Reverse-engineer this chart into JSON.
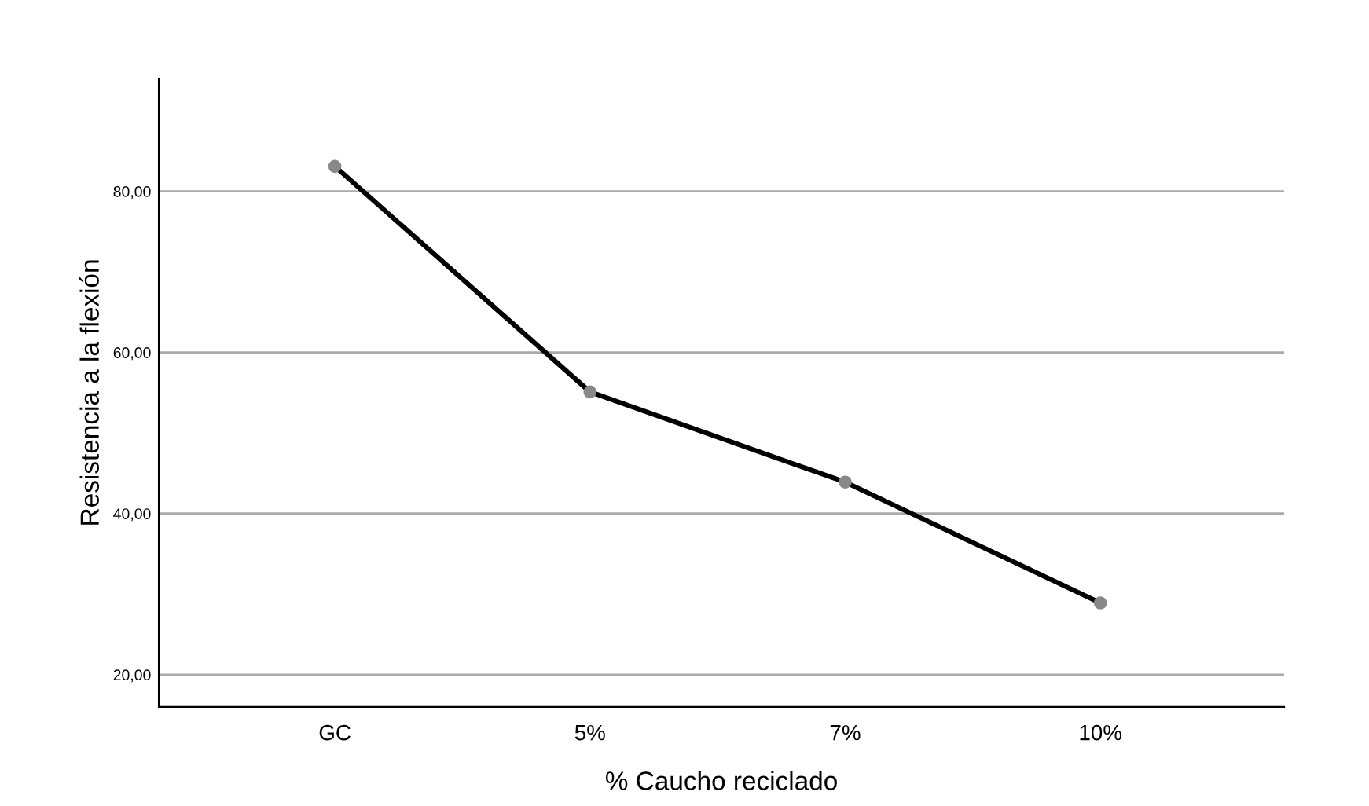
{
  "chart_data": {
    "type": "line",
    "xlabel": "% Caucho reciclado",
    "ylabel": "Resistencia a la flexión",
    "categories": [
      "GC",
      "5%",
      "7%",
      "10%"
    ],
    "series": [
      {
        "color": "#000000",
        "values": [
          83.1,
          55.1,
          43.9,
          28.9
        ]
      }
    ],
    "marker": "circle",
    "line_style": "solid",
    "ylim": [
      16,
      94
    ],
    "yticks": [
      {
        "value": 20,
        "label": "20,00"
      },
      {
        "value": 40,
        "label": "40,00"
      },
      {
        "value": 60,
        "label": "60,00"
      },
      {
        "value": 80,
        "label": "80,00"
      }
    ],
    "grid": "y"
  }
}
